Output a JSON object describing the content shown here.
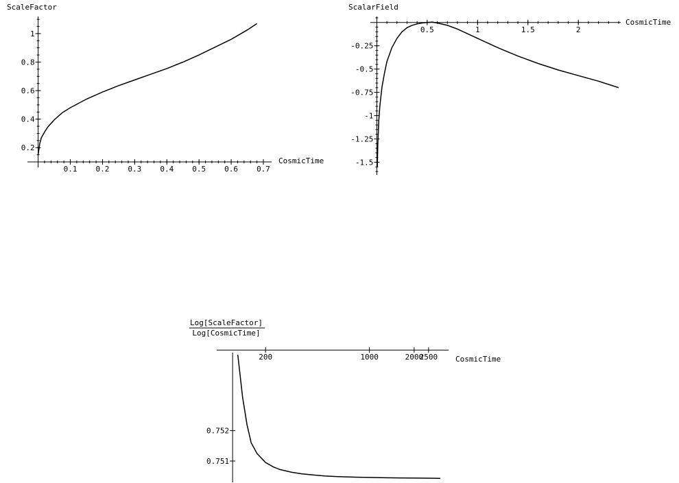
{
  "chart_data": [
    {
      "id": "plot1",
      "type": "line",
      "title": "",
      "xlabel": "CosmicTime",
      "ylabel": "ScaleFactor",
      "xlim": [
        -0.012,
        0.7
      ],
      "ylim": [
        0.1,
        1.12
      ],
      "x_ticks": [
        0.1,
        0.2,
        0.3,
        0.4,
        0.5,
        0.6,
        0.7
      ],
      "x_tick_labels": [
        "0.1",
        "0.2",
        "0.3",
        "0.4",
        "0.5",
        "0.6",
        "0.7"
      ],
      "y_ticks": [
        0.2,
        0.4,
        0.6,
        0.8,
        1.0
      ],
      "y_tick_labels": [
        "0.2",
        "0.4",
        "0.6",
        "0.8",
        "1"
      ],
      "grid": false,
      "series": [
        {
          "x": [
            0.0,
            0.005,
            0.01,
            0.02,
            0.03,
            0.05,
            0.075,
            0.1,
            0.15,
            0.2,
            0.25,
            0.3,
            0.35,
            0.4,
            0.45,
            0.5,
            0.55,
            0.6,
            0.65,
            0.68
          ],
          "values": [
            0.15,
            0.23,
            0.27,
            0.31,
            0.345,
            0.395,
            0.445,
            0.48,
            0.54,
            0.59,
            0.635,
            0.675,
            0.715,
            0.755,
            0.8,
            0.85,
            0.905,
            0.96,
            1.025,
            1.07
          ]
        }
      ]
    },
    {
      "id": "plot2",
      "type": "line",
      "title": "",
      "xlabel": "CosmicTime",
      "ylabel": "ScalarField",
      "xlim": [
        -0.03,
        2.4
      ],
      "ylim": [
        -1.6,
        0.05
      ],
      "x_ticks": [
        0.5,
        1,
        1.5,
        2
      ],
      "x_tick_labels": [
        "0.5",
        "1",
        "1.5",
        "2"
      ],
      "y_ticks": [
        -0.25,
        -0.5,
        -0.75,
        -1.0,
        -1.25,
        -1.5
      ],
      "y_tick_labels": [
        "-0.25",
        "-0.5",
        "-0.75",
        "-1",
        "-1.25",
        "-1.5"
      ],
      "grid": false,
      "series": [
        {
          "x": [
            0.005,
            0.01,
            0.02,
            0.03,
            0.05,
            0.075,
            0.1,
            0.15,
            0.2,
            0.25,
            0.3,
            0.35,
            0.4,
            0.45,
            0.5,
            0.55,
            0.6,
            0.7,
            0.8,
            1.0,
            1.2,
            1.4,
            1.6,
            1.8,
            2.0,
            2.2,
            2.4
          ],
          "values": [
            -1.55,
            -1.3,
            -1.05,
            -0.9,
            -0.7,
            -0.55,
            -0.42,
            -0.27,
            -0.17,
            -0.1,
            -0.055,
            -0.03,
            -0.015,
            -0.005,
            0.0,
            0.005,
            -0.005,
            -0.03,
            -0.07,
            -0.17,
            -0.27,
            -0.36,
            -0.44,
            -0.51,
            -0.57,
            -0.63,
            -0.7
          ]
        }
      ]
    },
    {
      "id": "plot3",
      "type": "line",
      "title": "",
      "xlabel": "CosmicTime",
      "ylabel": "Log[ScaleFactor] / Log[CosmicTime]",
      "ylabel_numerator": "Log[ScaleFactor]",
      "ylabel_denominator": "Log[CosmicTime]",
      "x_scale": "log",
      "xlim": [
        100,
        3000
      ],
      "ylim": [
        0.7503,
        0.7547
      ],
      "x_ticks": [
        200,
        1000,
        2000,
        2500
      ],
      "x_tick_labels": [
        "200",
        "1000",
        "2000",
        "2500"
      ],
      "y_ticks": [
        0.751,
        0.752
      ],
      "y_tick_labels": [
        "0.751",
        "0.752"
      ],
      "grid": false,
      "series": [
        {
          "x": [
            130,
            140,
            150,
            160,
            175,
            200,
            225,
            250,
            300,
            350,
            400,
            500,
            600,
            800,
            1000,
            1300,
            1600,
            2000,
            2500,
            3000
          ],
          "values": [
            0.7545,
            0.7531,
            0.7522,
            0.7516,
            0.75125,
            0.75095,
            0.75081,
            0.75072,
            0.75063,
            0.75058,
            0.75055,
            0.75051,
            0.75049,
            0.75047,
            0.75046,
            0.75045,
            0.750445,
            0.75044,
            0.750435,
            0.75043
          ]
        }
      ]
    }
  ]
}
